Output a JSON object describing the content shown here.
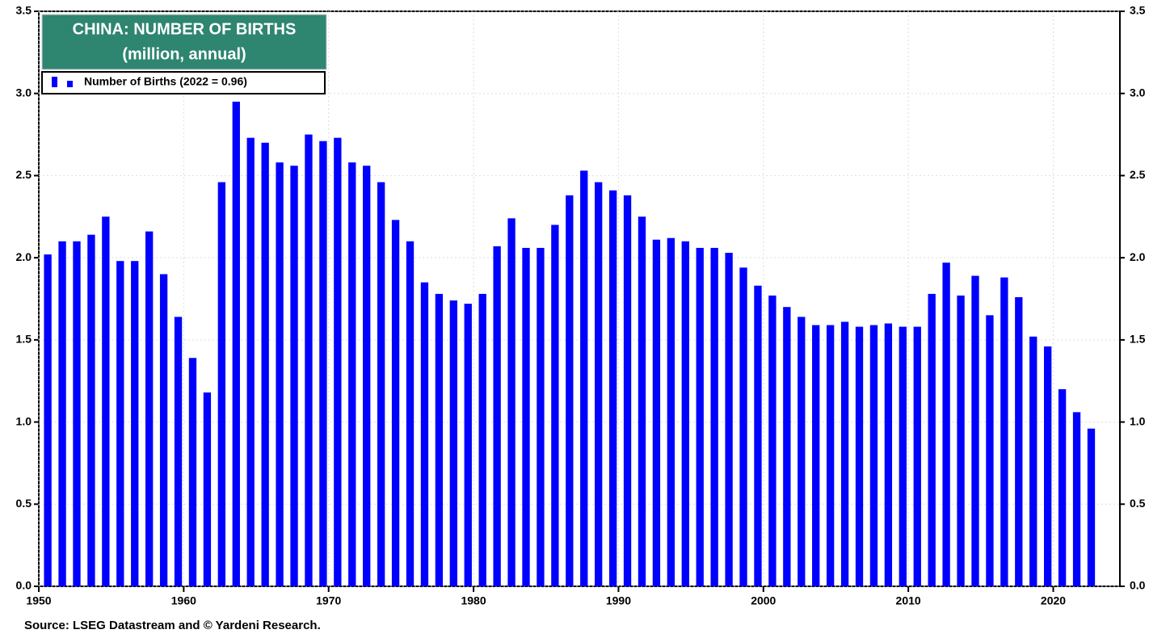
{
  "chart_data": {
    "type": "bar",
    "title": "CHINA: NUMBER OF BIRTHS",
    "subtitle": "(million, annual)",
    "source": "Source: LSEG Datastream and © Yardeni Research.",
    "legend_position": "upper left",
    "grid": true,
    "xlim": [
      1950,
      2024.6
    ],
    "xticks": [
      1950,
      1960,
      1970,
      1980,
      1990,
      2000,
      2010,
      2020
    ],
    "ylim": [
      0,
      3.5
    ],
    "yticks": [
      {
        "value": 0,
        "label": "0.0"
      },
      0.5,
      {
        "value": 1,
        "label": "1.0"
      },
      1.5,
      {
        "value": 2,
        "label": "2.0"
      },
      2.5,
      {
        "value": 3,
        "label": "3.0"
      },
      3.5
    ],
    "x": [
      1950,
      1951,
      1952,
      1953,
      1954,
      1955,
      1956,
      1957,
      1958,
      1959,
      1960,
      1961,
      1962,
      1963,
      1964,
      1965,
      1966,
      1967,
      1968,
      1969,
      1970,
      1971,
      1972,
      1973,
      1974,
      1975,
      1976,
      1977,
      1978,
      1979,
      1980,
      1981,
      1982,
      1983,
      1984,
      1985,
      1986,
      1987,
      1988,
      1989,
      1990,
      1991,
      1992,
      1993,
      1994,
      1995,
      1996,
      1997,
      1998,
      1999,
      2000,
      2001,
      2002,
      2003,
      2004,
      2005,
      2006,
      2007,
      2008,
      2009,
      2010,
      2011,
      2012,
      2013,
      2014,
      2015,
      2016,
      2017,
      2018,
      2019,
      2020,
      2021,
      2022
    ],
    "series": [
      {
        "name": "Number of Births  (2022 = 0.96)",
        "color": "#0000ff",
        "values": [
          2.02,
          2.1,
          2.1,
          2.14,
          2.25,
          1.98,
          1.98,
          2.16,
          1.9,
          1.64,
          1.39,
          1.18,
          2.46,
          2.95,
          2.73,
          2.7,
          2.58,
          2.56,
          2.75,
          2.71,
          2.73,
          2.58,
          2.56,
          2.46,
          2.23,
          2.1,
          1.85,
          1.78,
          1.74,
          1.72,
          1.78,
          2.07,
          2.24,
          2.06,
          2.06,
          2.2,
          2.38,
          2.53,
          2.46,
          2.41,
          2.38,
          2.25,
          2.11,
          2.12,
          2.1,
          2.06,
          2.06,
          2.03,
          1.94,
          1.83,
          1.77,
          1.7,
          1.64,
          1.59,
          1.59,
          1.61,
          1.58,
          1.59,
          1.6,
          1.58,
          1.58,
          1.78,
          1.97,
          1.77,
          1.89,
          1.65,
          1.88,
          1.76,
          1.52,
          1.46,
          1.2,
          1.06,
          0.96
        ]
      }
    ]
  }
}
